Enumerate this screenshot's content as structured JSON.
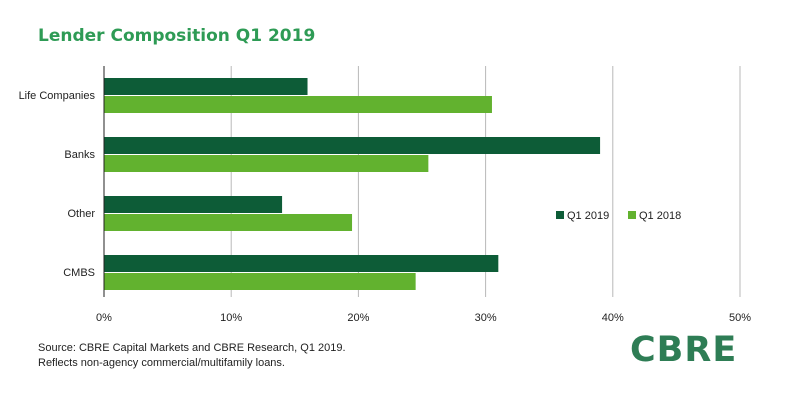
{
  "colors": {
    "title": "#2e9b55",
    "q1_2019": "#0d5c37",
    "q1_2018": "#62b22f",
    "grid": "#b8b8b8",
    "axis": "#222222",
    "logo": "#2e7d55"
  },
  "chart_data": {
    "type": "bar",
    "orientation": "horizontal",
    "title": "Lender Composition Q1 2019",
    "categories": [
      "Life Companies",
      "Banks",
      "Other",
      "CMBS"
    ],
    "series": [
      {
        "name": "Q1 2019",
        "values": [
          16,
          39,
          14,
          31
        ]
      },
      {
        "name": "Q1 2018",
        "values": [
          30.5,
          25.5,
          19.5,
          24.5
        ]
      }
    ],
    "xlim": [
      0,
      50
    ],
    "xticks": [
      "0%",
      "10%",
      "20%",
      "30%",
      "40%",
      "50%"
    ],
    "xtick_values": [
      0,
      10,
      20,
      30,
      40,
      50
    ],
    "grid": "vertical",
    "legend_position": "right"
  },
  "source": {
    "line1": "Source: CBRE Capital Markets and CBRE Research, Q1 2019.",
    "line2": "Reflects non-agency commercial/multifamily loans."
  },
  "logo": {
    "text": "CBRE"
  }
}
